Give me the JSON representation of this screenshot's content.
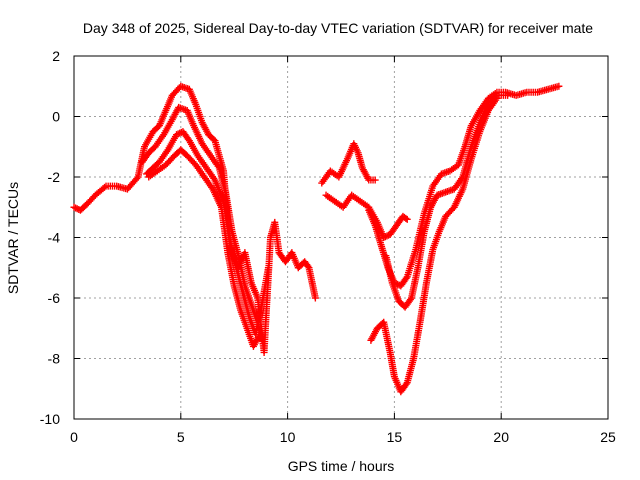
{
  "chart_data": {
    "type": "scatter",
    "title": "Day 348 of 2025, Sidereal Day-to-day VTEC variation (SDTVAR) for receiver mate",
    "xlabel": "GPS time / hours",
    "ylabel": "SDTVAR / TECUs",
    "xlim": [
      0,
      25
    ],
    "ylim": [
      -10,
      2
    ],
    "xticks": [
      0,
      5,
      10,
      15,
      20,
      25
    ],
    "yticks": [
      -10,
      -8,
      -6,
      -4,
      -2,
      0,
      2
    ],
    "grid": true,
    "marker": "+",
    "color": "#ff0000",
    "series": [
      {
        "points": [
          [
            0.0,
            -3.0
          ],
          [
            0.3,
            -3.1
          ],
          [
            0.6,
            -2.9
          ],
          [
            1.0,
            -2.6
          ],
          [
            1.5,
            -2.3
          ],
          [
            2.0,
            -2.3
          ],
          [
            2.5,
            -2.4
          ],
          [
            3.0,
            -2.0
          ],
          [
            3.3,
            -1.0
          ],
          [
            3.7,
            -0.5
          ],
          [
            4.0,
            -0.3
          ],
          [
            4.3,
            0.2
          ],
          [
            4.6,
            0.7
          ],
          [
            5.0,
            1.0
          ],
          [
            5.4,
            0.9
          ],
          [
            5.7,
            0.4
          ],
          [
            6.0,
            -0.2
          ],
          [
            6.3,
            -0.6
          ],
          [
            6.6,
            -0.8
          ],
          [
            7.0,
            -1.8
          ],
          [
            7.2,
            -3.5
          ],
          [
            7.4,
            -4.5
          ],
          [
            7.7,
            -5.0
          ],
          [
            8.0,
            -4.5
          ],
          [
            8.3,
            -5.5
          ],
          [
            8.6,
            -6.0
          ],
          [
            8.9,
            -7.8
          ],
          [
            9.0,
            -6.5
          ],
          [
            9.2,
            -4.0
          ],
          [
            9.4,
            -3.5
          ],
          [
            9.6,
            -4.5
          ],
          [
            9.9,
            -4.8
          ],
          [
            10.2,
            -4.5
          ],
          [
            10.5,
            -5.0
          ],
          [
            10.8,
            -4.8
          ],
          [
            11.0,
            -5.0
          ],
          [
            11.3,
            -6.0
          ]
        ]
      },
      {
        "points": [
          [
            3.2,
            -1.5
          ],
          [
            3.5,
            -1.2
          ],
          [
            3.8,
            -1.0
          ],
          [
            4.2,
            -0.6
          ],
          [
            4.6,
            -0.1
          ],
          [
            4.9,
            0.3
          ],
          [
            5.3,
            0.2
          ],
          [
            5.6,
            -0.3
          ],
          [
            6.0,
            -0.9
          ],
          [
            6.4,
            -1.3
          ],
          [
            6.8,
            -1.7
          ],
          [
            7.1,
            -2.5
          ],
          [
            7.4,
            -3.8
          ],
          [
            7.7,
            -4.6
          ],
          [
            8.0,
            -5.6
          ],
          [
            8.3,
            -6.2
          ],
          [
            8.6,
            -6.8
          ],
          [
            8.8,
            -7.4
          ]
        ]
      },
      {
        "points": [
          [
            3.4,
            -1.9
          ],
          [
            3.7,
            -1.7
          ],
          [
            4.0,
            -1.5
          ],
          [
            4.4,
            -1.1
          ],
          [
            4.8,
            -0.6
          ],
          [
            5.1,
            -0.5
          ],
          [
            5.4,
            -0.8
          ],
          [
            5.8,
            -1.3
          ],
          [
            6.2,
            -1.7
          ],
          [
            6.6,
            -2.1
          ],
          [
            7.0,
            -2.8
          ],
          [
            7.3,
            -4.2
          ],
          [
            7.6,
            -5.0
          ],
          [
            7.9,
            -5.8
          ],
          [
            8.2,
            -6.6
          ],
          [
            8.5,
            -7.2
          ],
          [
            8.8,
            -6.2
          ],
          [
            9.1,
            -5.0
          ]
        ]
      },
      {
        "points": [
          [
            3.5,
            -2.0
          ],
          [
            3.9,
            -1.8
          ],
          [
            4.3,
            -1.6
          ],
          [
            4.7,
            -1.3
          ],
          [
            5.0,
            -1.1
          ],
          [
            5.3,
            -1.3
          ],
          [
            5.7,
            -1.6
          ],
          [
            6.1,
            -2.0
          ],
          [
            6.5,
            -2.4
          ],
          [
            6.9,
            -3.0
          ],
          [
            7.2,
            -4.5
          ],
          [
            7.5,
            -5.6
          ],
          [
            7.8,
            -6.4
          ],
          [
            8.1,
            -7.0
          ],
          [
            8.4,
            -7.6
          ],
          [
            8.7,
            -7.2
          ]
        ]
      },
      {
        "points": [
          [
            11.6,
            -2.2
          ],
          [
            12.0,
            -1.8
          ],
          [
            12.4,
            -2.0
          ],
          [
            12.8,
            -1.4
          ],
          [
            13.1,
            -0.9
          ],
          [
            13.3,
            -1.2
          ],
          [
            13.5,
            -1.7
          ],
          [
            13.8,
            -2.1
          ],
          [
            14.1,
            -2.1
          ]
        ]
      },
      {
        "points": [
          [
            11.8,
            -2.6
          ],
          [
            12.2,
            -2.8
          ],
          [
            12.6,
            -3.0
          ],
          [
            13.0,
            -2.6
          ],
          [
            13.4,
            -2.8
          ],
          [
            13.8,
            -3.0
          ],
          [
            14.2,
            -3.5
          ],
          [
            14.5,
            -4.0
          ],
          [
            14.8,
            -3.9
          ],
          [
            15.1,
            -3.6
          ],
          [
            15.4,
            -3.3
          ],
          [
            15.6,
            -3.4
          ]
        ]
      },
      {
        "points": [
          [
            13.8,
            -3.1
          ],
          [
            14.1,
            -3.6
          ],
          [
            14.4,
            -4.3
          ],
          [
            14.7,
            -5.0
          ],
          [
            15.0,
            -5.5
          ],
          [
            15.3,
            -5.6
          ],
          [
            15.6,
            -5.3
          ],
          [
            16.0,
            -4.4
          ],
          [
            16.4,
            -3.2
          ],
          [
            16.8,
            -2.3
          ],
          [
            17.2,
            -1.9
          ],
          [
            17.6,
            -1.8
          ],
          [
            18.0,
            -1.6
          ],
          [
            18.3,
            -1.0
          ],
          [
            18.6,
            -0.3
          ],
          [
            19.0,
            0.2
          ],
          [
            19.4,
            0.6
          ],
          [
            19.8,
            0.8
          ],
          [
            20.2,
            0.8
          ],
          [
            20.7,
            0.7
          ],
          [
            21.2,
            0.8
          ],
          [
            21.7,
            0.8
          ],
          [
            22.2,
            0.9
          ],
          [
            22.7,
            1.0
          ]
        ]
      },
      {
        "points": [
          [
            14.6,
            -4.6
          ],
          [
            14.9,
            -5.5
          ],
          [
            15.2,
            -6.1
          ],
          [
            15.5,
            -6.3
          ],
          [
            15.8,
            -6.0
          ],
          [
            16.1,
            -5.0
          ],
          [
            16.4,
            -3.8
          ],
          [
            16.7,
            -3.0
          ],
          [
            17.0,
            -2.6
          ],
          [
            17.4,
            -2.5
          ],
          [
            17.8,
            -2.4
          ],
          [
            18.2,
            -2.0
          ],
          [
            18.6,
            -1.0
          ],
          [
            19.0,
            -0.2
          ],
          [
            19.4,
            0.4
          ],
          [
            19.8,
            0.7
          ],
          [
            20.3,
            0.7
          ]
        ]
      },
      {
        "points": [
          [
            13.9,
            -7.4
          ],
          [
            14.2,
            -7.0
          ],
          [
            14.5,
            -6.8
          ],
          [
            14.8,
            -7.8
          ],
          [
            15.0,
            -8.6
          ],
          [
            15.3,
            -9.1
          ],
          [
            15.6,
            -8.8
          ],
          [
            15.9,
            -8.0
          ],
          [
            16.2,
            -6.8
          ],
          [
            16.5,
            -5.5
          ],
          [
            16.8,
            -4.4
          ],
          [
            17.1,
            -3.8
          ],
          [
            17.4,
            -3.3
          ],
          [
            17.8,
            -3.0
          ],
          [
            18.2,
            -2.4
          ],
          [
            18.6,
            -1.4
          ],
          [
            19.0,
            -0.5
          ],
          [
            19.4,
            0.2
          ],
          [
            19.8,
            0.6
          ]
        ]
      }
    ]
  }
}
